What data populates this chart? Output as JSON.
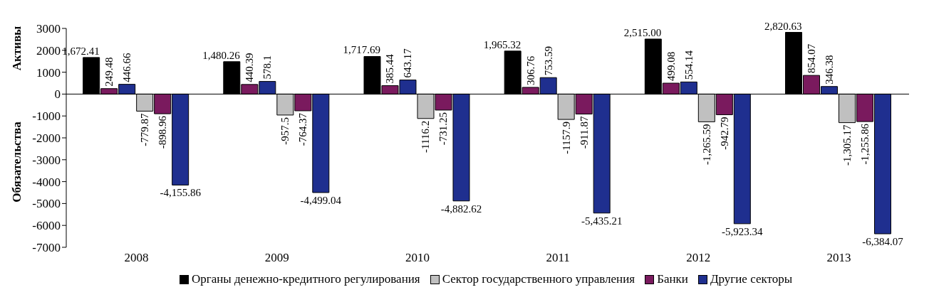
{
  "chart_data": {
    "type": "bar",
    "ylabel": "Активы",
    "annotations": [
      "Обязательства"
    ],
    "categories": [
      "2008",
      "2009",
      "2010",
      "2011",
      "2012",
      "2013"
    ],
    "ylim": [
      -7000,
      3000
    ],
    "yticks": [
      -7000,
      -6000,
      -5000,
      -4000,
      -3000,
      -2000,
      -1000,
      0,
      1000,
      2000,
      3000
    ],
    "grid": false,
    "legend": "bottom",
    "ref_lines": [
      {
        "axis": "y",
        "value": 0,
        "color": "#000000"
      }
    ],
    "series": [
      {
        "name": "Органы денежно-кредитного регулирования",
        "color": "#000000",
        "values": [
          1672.41,
          1480.26,
          1717.69,
          1965.32,
          2515.0,
          2820.63
        ],
        "value_labels": [
          "1,672.41",
          "1,480.26",
          "1,717.69",
          "1,965.32",
          "2,515.00",
          "2,820.63"
        ]
      },
      {
        "name": "Банки",
        "color": "#7a1a5e",
        "values": [
          249.48,
          440.39,
          385.44,
          306.76,
          499.08,
          854.07
        ],
        "value_labels": [
          "249.48",
          "440.39",
          "385.44",
          "306.76",
          "499.08",
          "854.07"
        ]
      },
      {
        "name": "Другие секторы",
        "color": "#1f2f8f",
        "values": [
          446.66,
          578.1,
          643.17,
          753.59,
          554.14,
          346.38
        ],
        "value_labels": [
          "446.66",
          "578.1",
          "643.17",
          "753.59",
          "554.14",
          "346.38"
        ]
      },
      {
        "name": "Сектор государственного управления",
        "color": "#c0c0c0",
        "values": [
          -779.87,
          -957.5,
          -1116.2,
          -1157.9,
          -1265.59,
          -1305.17
        ],
        "value_labels": [
          "-779.87",
          "-957.5",
          "-1116.2",
          "-1157.9",
          "-1,265.59",
          "-1,305.17"
        ]
      },
      {
        "color": "#7a1a5e",
        "values": [
          -898.96,
          -764.37,
          -731.25,
          -911.87,
          -942.79,
          -1255.86
        ],
        "value_labels": [
          "-898.96",
          "-764.37",
          "-731.25",
          "-911.87",
          "-942.79",
          "-1,255.86"
        ]
      },
      {
        "color": "#1f2f8f",
        "values": [
          -4155.86,
          -4499.04,
          -4882.62,
          -5435.21,
          -5923.34,
          -6384.07
        ],
        "value_labels": [
          "-4,155.86",
          "-4,499.04",
          "-4,882.62",
          "-5,435.21",
          "-5,923.34",
          "-6,384.07"
        ]
      }
    ]
  }
}
